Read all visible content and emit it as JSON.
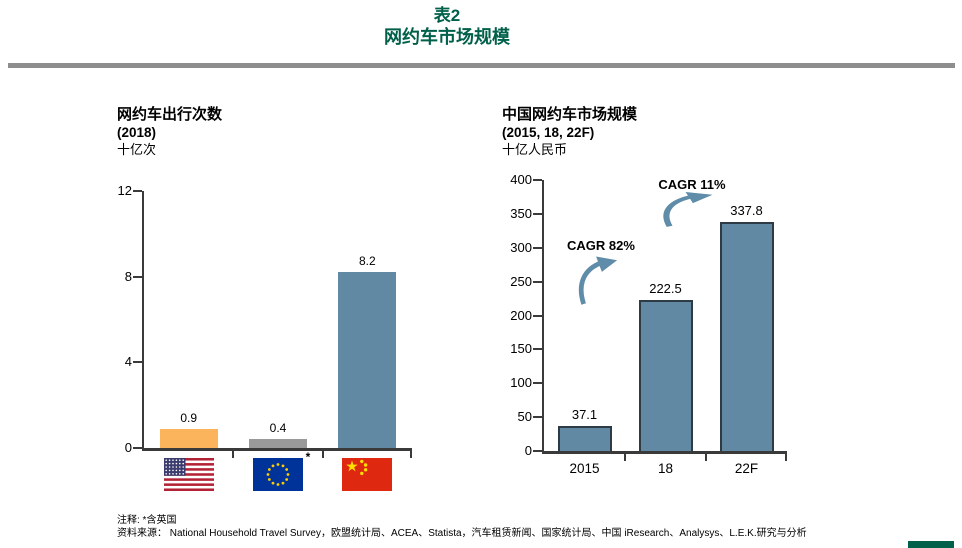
{
  "header": {
    "table_label": "表2",
    "title": "网约车市场规模"
  },
  "chart_data": [
    {
      "type": "bar",
      "title": "网约车出行次数",
      "subtitle": "(2018)",
      "ylabel": "十亿次",
      "categories": [
        "us-flag",
        "eu-flag",
        "china-flag"
      ],
      "category_footnote": {
        "index": 1,
        "marker": "*"
      },
      "values": [
        0.9,
        0.4,
        8.2
      ],
      "value_labels": [
        "0.9",
        "0.4",
        "8.2"
      ],
      "bar_colors": [
        "#FBB45C",
        "#9A9A9A",
        "#6289A4"
      ],
      "ylim": [
        0,
        12
      ],
      "yticks": [
        0,
        4,
        8,
        12
      ],
      "grid": false,
      "legend": "none"
    },
    {
      "type": "bar",
      "title": "中国网约车市场规模",
      "subtitle": "(2015, 18, 22F)",
      "ylabel": "十亿人民币",
      "categories": [
        "2015",
        "18",
        "22F"
      ],
      "values": [
        37.1,
        222.5,
        337.8
      ],
      "value_labels": [
        "37.1",
        "222.5",
        "337.8"
      ],
      "bar_colors": [
        "#6289A4",
        "#6289A4",
        "#6289A4"
      ],
      "bar_border_color": "#2F3B44",
      "ylim": [
        0,
        400
      ],
      "yticks": [
        0,
        50,
        100,
        150,
        200,
        250,
        300,
        350,
        400
      ],
      "grid": false,
      "legend": "none",
      "annotations": [
        {
          "label": "CAGR 82%"
        },
        {
          "label": "CAGR 11%"
        }
      ]
    }
  ],
  "footer": {
    "note": "注释: *含英国",
    "source": "资料来源： National Household Travel Survey，欧盟统计局、ACEA、Statista，汽车租赁新闻、国家统计局、中国 iResearch、Analysys、L.E.K.研究与分析"
  },
  "colors": {
    "accent_green": "#00604A",
    "rule_gray": "#8E8E8E",
    "axis": "#3A3A3A",
    "steel_blue": "#6289A4",
    "orange": "#FBB45C",
    "gray_bar": "#9A9A9A",
    "arrow_blue": "#5E8CA9"
  }
}
